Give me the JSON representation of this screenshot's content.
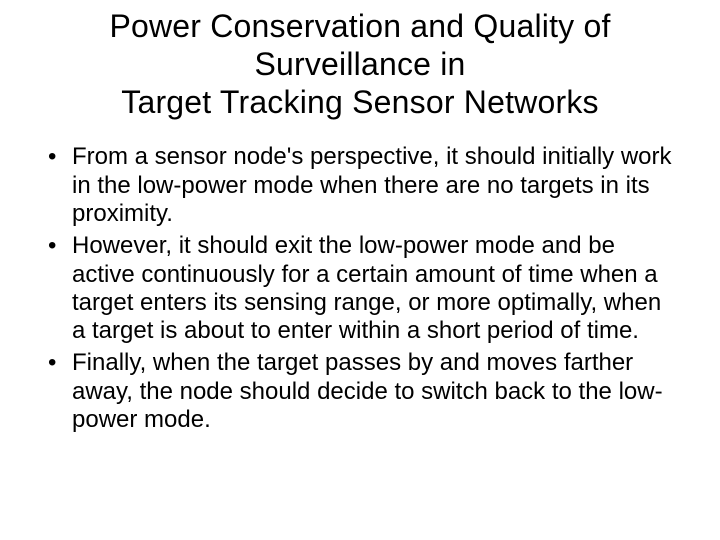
{
  "slide": {
    "title": "Power Conservation and Quality of Surveillance in\nTarget Tracking Sensor Networks",
    "bullets": [
      "From a sensor node's perspective, it should initially work in the low-power mode when there are no targets in its proximity.",
      "However, it should exit the low-power mode and be active continuously for a certain amount of time when a target enters its sensing range, or more optimally, when a target is about to enter within a short period of time.",
      "Finally, when the target passes by and moves farther away, the node should decide to switch back to the low-power mode."
    ]
  },
  "style": {
    "background_color": "#ffffff",
    "text_color": "#000000",
    "title_fontsize": 32,
    "body_fontsize": 24,
    "font_family": "Arial"
  }
}
